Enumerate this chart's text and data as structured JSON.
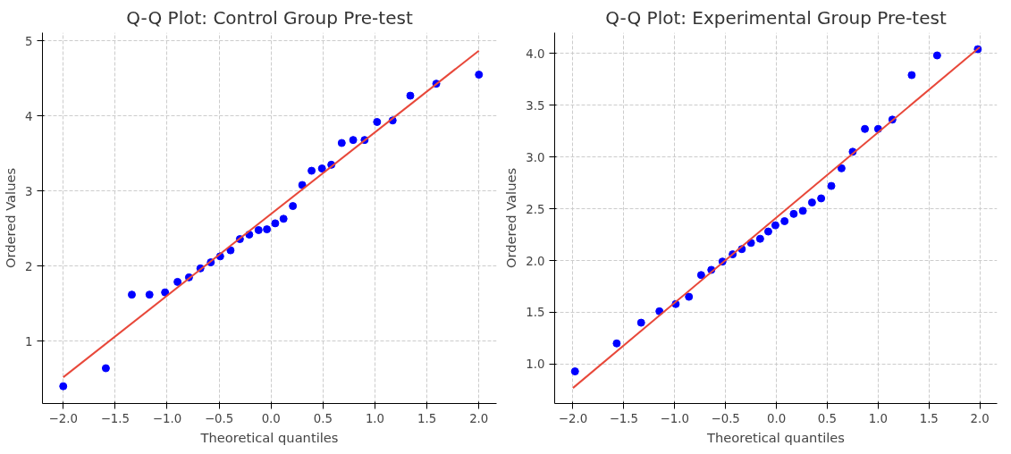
{
  "chart_data": [
    {
      "type": "scatter",
      "title": "Q-Q Plot: Control Group Pre-test",
      "xlabel": "Theoretical quantiles",
      "ylabel": "Ordered Values",
      "xlim": [
        -2.2,
        2.17
      ],
      "ylim": [
        0.17,
        5.11
      ],
      "xticks": [
        {
          "value": -2,
          "label": "−2.0"
        },
        {
          "value": -1.5,
          "label": "−1.5"
        },
        {
          "value": -1,
          "label": "−1.0"
        },
        {
          "value": -0.5,
          "label": "−0.5"
        },
        {
          "value": 0,
          "label": "0.0"
        },
        {
          "value": 0.5,
          "label": "0.5"
        },
        {
          "value": 1,
          "label": "1.0"
        },
        {
          "value": 1.5,
          "label": "1.5"
        },
        {
          "value": 2,
          "label": "2.0"
        }
      ],
      "yticks": [
        1,
        2,
        3,
        4,
        5
      ],
      "grid": true,
      "series": [
        {
          "color": "#0000ff",
          "marker": "circle",
          "x": [
            -2.0,
            -1.59,
            -1.34,
            -1.17,
            -1.02,
            -0.9,
            -0.79,
            -0.68,
            -0.58,
            -0.49,
            -0.39,
            -0.3,
            -0.21,
            -0.12,
            -0.04,
            0.04,
            0.12,
            0.21,
            0.3,
            0.39,
            0.49,
            0.58,
            0.68,
            0.79,
            0.9,
            1.02,
            1.17,
            1.34,
            1.59,
            2.0
          ],
          "values": [
            0.4,
            0.64,
            1.62,
            1.62,
            1.65,
            1.79,
            1.85,
            1.97,
            2.05,
            2.13,
            2.21,
            2.36,
            2.42,
            2.48,
            2.49,
            2.57,
            2.63,
            2.8,
            3.08,
            3.27,
            3.3,
            3.35,
            3.64,
            3.68,
            3.68,
            3.92,
            3.94,
            4.27,
            4.43,
            4.55
          ]
        },
        {
          "type": "line",
          "color": "#e8483a",
          "line_style": "solid",
          "x": [
            -2.0,
            2.0
          ],
          "values": [
            0.52,
            4.87
          ]
        }
      ]
    },
    {
      "type": "scatter",
      "title": "Q-Q Plot: Experimental Group Pre-test",
      "xlabel": "Theoretical quantiles",
      "ylabel": "Ordered Values",
      "xlim": [
        -2.18,
        2.17
      ],
      "ylim": [
        0.62,
        4.2
      ],
      "xticks": [
        {
          "value": -2,
          "label": "−2.0"
        },
        {
          "value": -1.5,
          "label": "−1.5"
        },
        {
          "value": -1,
          "label": "−1.0"
        },
        {
          "value": -0.5,
          "label": "−0.5"
        },
        {
          "value": 0,
          "label": "0.0"
        },
        {
          "value": 0.5,
          "label": "0.5"
        },
        {
          "value": 1,
          "label": "1.0"
        },
        {
          "value": 1.5,
          "label": "1.5"
        },
        {
          "value": 2,
          "label": "2.0"
        }
      ],
      "yticks": [
        {
          "value": 1,
          "label": "1.0"
        },
        {
          "value": 1.5,
          "label": "1.5"
        },
        {
          "value": 2,
          "label": "2.0"
        },
        {
          "value": 2.5,
          "label": "2.5"
        },
        {
          "value": 3,
          "label": "3.0"
        },
        {
          "value": 3.5,
          "label": "3.5"
        },
        {
          "value": 4,
          "label": "4.0"
        }
      ],
      "grid": true,
      "series": [
        {
          "color": "#0000ff",
          "marker": "circle",
          "x": [
            -1.98,
            -1.57,
            -1.33,
            -1.15,
            -0.99,
            -0.86,
            -0.74,
            -0.64,
            -0.53,
            -0.43,
            -0.34,
            -0.25,
            -0.16,
            -0.08,
            -0.01,
            0.08,
            0.17,
            0.26,
            0.35,
            0.44,
            0.54,
            0.64,
            0.75,
            0.87,
            1.0,
            1.14,
            1.33,
            1.58,
            1.98
          ],
          "values": [
            0.93,
            1.2,
            1.4,
            1.51,
            1.58,
            1.65,
            1.86,
            1.91,
            1.99,
            2.06,
            2.11,
            2.17,
            2.21,
            2.28,
            2.34,
            2.38,
            2.45,
            2.48,
            2.56,
            2.6,
            2.72,
            2.89,
            3.05,
            3.27,
            3.27,
            3.36,
            3.79,
            3.98,
            4.04
          ]
        },
        {
          "type": "line",
          "color": "#e8483a",
          "line_style": "solid",
          "x": [
            -2.0,
            2.0
          ],
          "values": [
            0.77,
            4.06
          ]
        }
      ]
    }
  ]
}
